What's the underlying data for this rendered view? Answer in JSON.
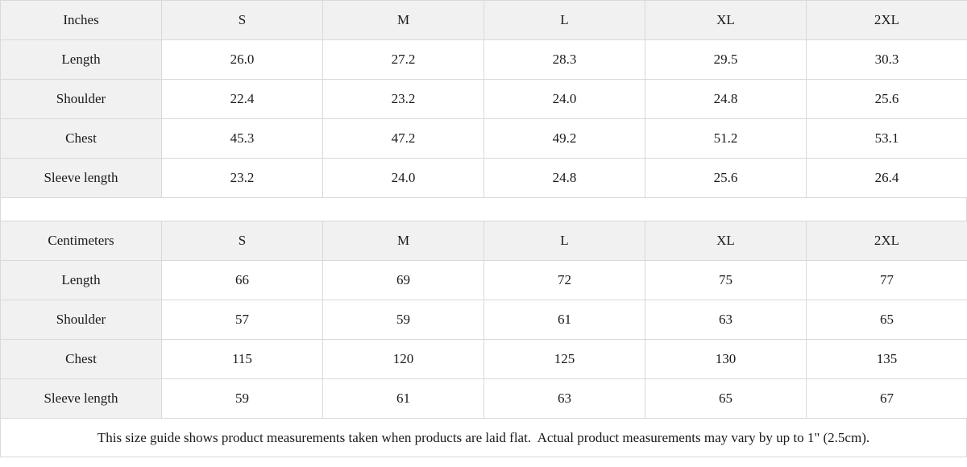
{
  "colors": {
    "header_fill": "#f1f1f1",
    "border": "#d9d9d9",
    "text": "#1a1a1a",
    "cell_background": "#ffffff"
  },
  "size_guide": {
    "size_columns": [
      "S",
      "M",
      "L",
      "XL",
      "2XL"
    ],
    "tables": [
      {
        "unit_label": "Inches",
        "rows": [
          {
            "label": "Length",
            "values": [
              "26.0",
              "27.2",
              "28.3",
              "29.5",
              "30.3"
            ]
          },
          {
            "label": "Shoulder",
            "values": [
              "22.4",
              "23.2",
              "24.0",
              "24.8",
              "25.6"
            ]
          },
          {
            "label": "Chest",
            "values": [
              "45.3",
              "47.2",
              "49.2",
              "51.2",
              "53.1"
            ]
          },
          {
            "label": "Sleeve length",
            "values": [
              "23.2",
              "24.0",
              "24.8",
              "25.6",
              "26.4"
            ]
          }
        ]
      },
      {
        "unit_label": "Centimeters",
        "rows": [
          {
            "label": "Length",
            "values": [
              "66",
              "69",
              "72",
              "75",
              "77"
            ]
          },
          {
            "label": "Shoulder",
            "values": [
              "57",
              "59",
              "61",
              "63",
              "65"
            ]
          },
          {
            "label": "Chest",
            "values": [
              "115",
              "120",
              "125",
              "130",
              "135"
            ]
          },
          {
            "label": "Sleeve length",
            "values": [
              "59",
              "61",
              "63",
              "65",
              "67"
            ]
          }
        ]
      }
    ],
    "note": "This size guide shows product measurements taken when products are laid flat.  Actual product measurements may vary by up to 1\" (2.5cm)."
  }
}
